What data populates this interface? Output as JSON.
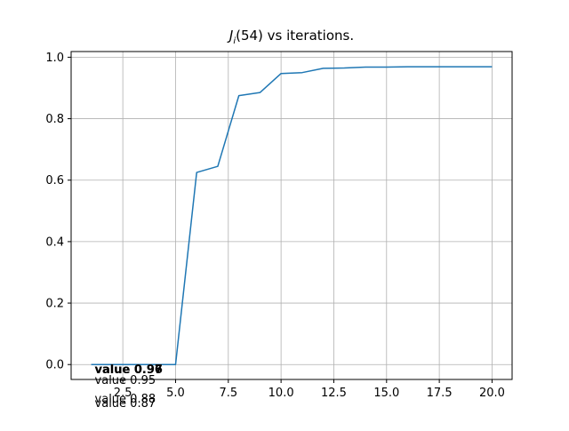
{
  "chart_data": {
    "type": "line",
    "title_parts": {
      "symbol": "J",
      "subscript": "i",
      "rest": "(54) vs iterations."
    },
    "xlabel": "",
    "ylabel": "",
    "xlim": [
      0.05,
      20.95
    ],
    "ylim": [
      -0.0485,
      1.0185
    ],
    "x_ticks": [
      {
        "value": 2.5,
        "label": "2.5"
      },
      {
        "value": 5.0,
        "label": "5.0"
      },
      {
        "value": 7.5,
        "label": "7.5"
      },
      {
        "value": 10.0,
        "label": "10.0"
      },
      {
        "value": 12.5,
        "label": "12.5"
      },
      {
        "value": 15.0,
        "label": "15.0"
      },
      {
        "value": 17.5,
        "label": "17.5"
      },
      {
        "value": 20.0,
        "label": "20.0"
      }
    ],
    "y_ticks": [
      {
        "value": 0.0,
        "label": "0.0"
      },
      {
        "value": 0.2,
        "label": "0.2"
      },
      {
        "value": 0.4,
        "label": "0.4"
      },
      {
        "value": 0.6,
        "label": "0.6"
      },
      {
        "value": 0.8,
        "label": "0.8"
      },
      {
        "value": 1.0,
        "label": "1.0"
      }
    ],
    "grid": true,
    "series": [
      {
        "color": "#1f77b4",
        "x": [
          1,
          2,
          3,
          4,
          5,
          6,
          7,
          8,
          9,
          10,
          11,
          12,
          13,
          14,
          15,
          16,
          17,
          18,
          19,
          20
        ],
        "y": [
          0.0,
          0.0,
          0.0,
          0.0,
          0.0,
          0.625,
          0.645,
          0.875,
          0.885,
          0.947,
          0.95,
          0.964,
          0.965,
          0.968,
          0.968,
          0.969,
          0.969,
          0.969,
          0.969,
          0.969
        ]
      }
    ],
    "annotations": [
      {
        "text": "value 0.97",
        "x": 1,
        "y": 0.0,
        "dy": 0,
        "bold": true
      },
      {
        "text": "value 0.96",
        "x": 1,
        "y": 0.0,
        "dy": 0,
        "bold": true
      },
      {
        "text": "value 0.95",
        "x": 1,
        "y": 0.0,
        "dy": 12,
        "bold": false
      },
      {
        "text": "value 0.88",
        "x": 1,
        "y": 0.0,
        "dy": 33,
        "bold": false
      },
      {
        "text": "value 0.87",
        "x": 1,
        "y": 0.0,
        "dy": 38,
        "bold": false
      }
    ]
  }
}
